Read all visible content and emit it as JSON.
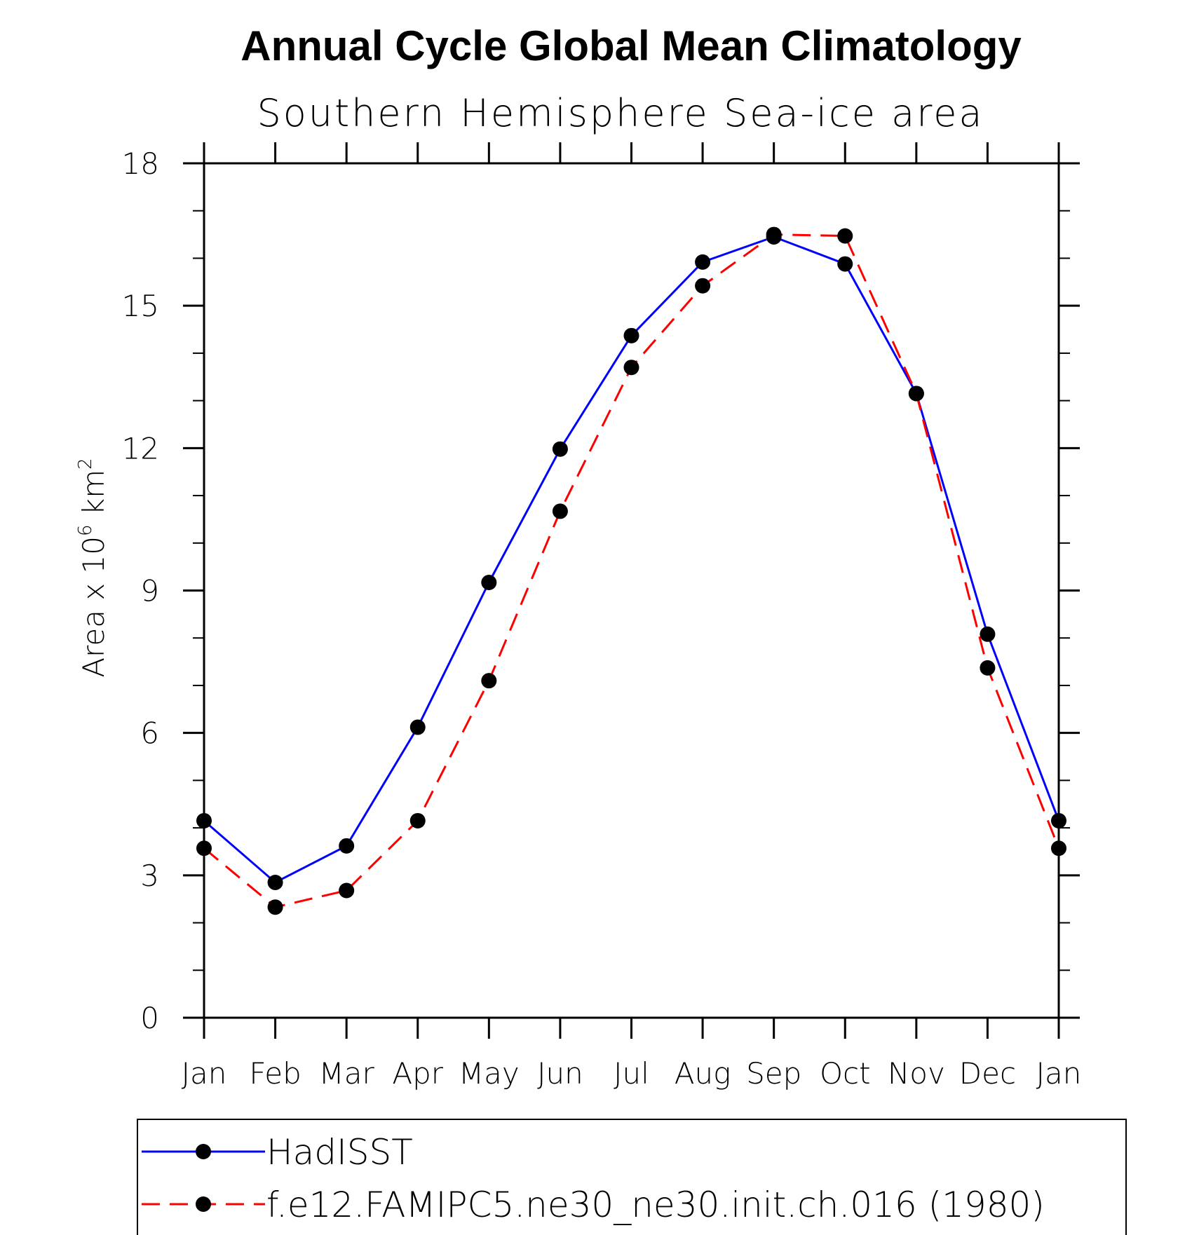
{
  "chart_data": {
    "type": "line",
    "title": "Annual Cycle Global Mean Climatology",
    "subtitle": "Southern Hemisphere Sea-ice area",
    "ylabel": "Area x 10",
    "ylabel_exp": "6",
    "ylabel_unit": "km",
    "ylabel_unit_exp": "2",
    "categories": [
      "Jan",
      "Feb",
      "Mar",
      "Apr",
      "May",
      "Jun",
      "Jul",
      "Aug",
      "Sep",
      "Oct",
      "Nov",
      "Dec",
      "Jan"
    ],
    "ylim": [
      0,
      18
    ],
    "yticks": [
      "0",
      "3",
      "6",
      "9",
      "12",
      "15",
      "18"
    ],
    "series": [
      {
        "name": "HadISST",
        "color": "#0000ff",
        "style": "solid",
        "values": [
          4.15,
          2.85,
          3.62,
          6.12,
          9.17,
          11.98,
          14.37,
          15.92,
          16.45,
          15.88,
          13.15,
          8.08,
          4.15
        ]
      },
      {
        "name": "f.e12.FAMIPC5.ne30_ne30.init.ch.016 (1980)",
        "color": "#ff0000",
        "style": "dashed",
        "values": [
          3.57,
          2.33,
          2.68,
          4.15,
          7.1,
          10.67,
          13.7,
          15.42,
          16.5,
          16.47,
          13.15,
          7.37,
          3.57
        ]
      }
    ],
    "marker": "filled-circle",
    "marker_color": "#000000",
    "grid": false,
    "legend_position": "bottom"
  }
}
